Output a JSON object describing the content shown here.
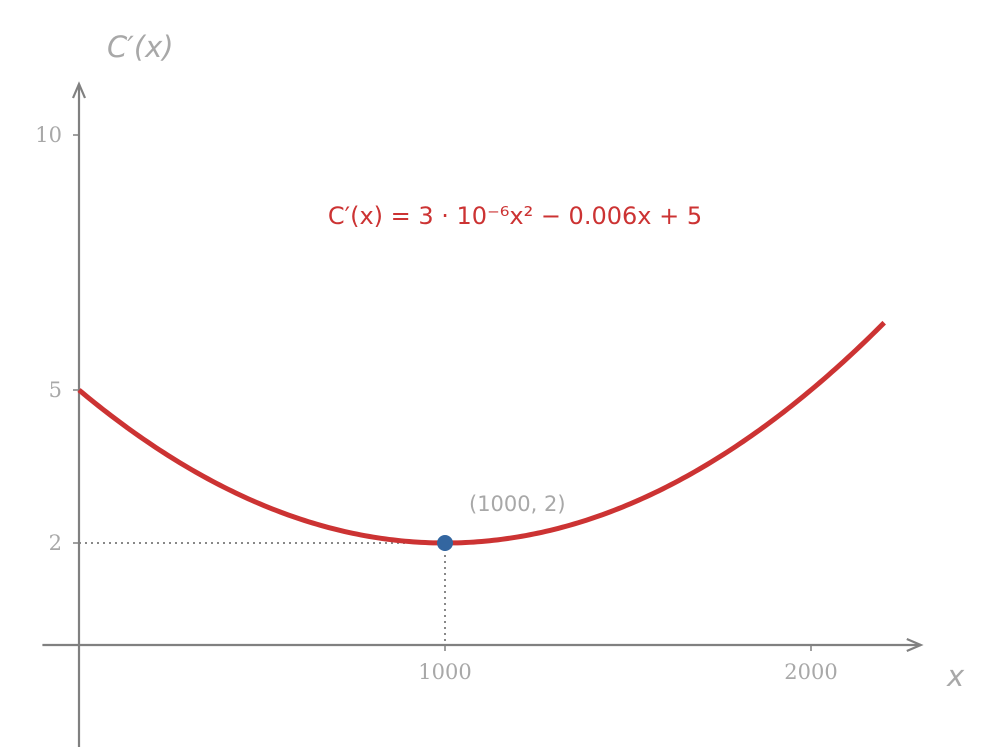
{
  "chart_data": {
    "type": "line",
    "xlabel": "x",
    "ylabel": "C′(x)",
    "xlim": [
      -100,
      2300
    ],
    "ylim": [
      -2,
      11
    ],
    "x_ticks": [
      {
        "value": 1000,
        "label": "1000"
      },
      {
        "value": 2000,
        "label": "2000"
      }
    ],
    "y_ticks": [
      {
        "value": 2,
        "label": "2"
      },
      {
        "value": 5,
        "label": "5"
      },
      {
        "value": 10,
        "label": "10"
      }
    ],
    "series": [
      {
        "function": {
          "a": 3e-06,
          "b": -0.006,
          "c": 5
        },
        "x_range": [
          0,
          2200
        ],
        "color": "#cc3333"
      }
    ],
    "annotations": {
      "equation": {
        "text": "C′(x) = 3 · 10⁻⁶x² − 0.006x + 5",
        "color": "#cc3333"
      },
      "minimum_point": {
        "x": 1000,
        "y": 2,
        "label": "(1000, 2)",
        "color": "#3366a0"
      }
    },
    "colors": {
      "axis": "#808080",
      "guide": "#888888"
    }
  }
}
